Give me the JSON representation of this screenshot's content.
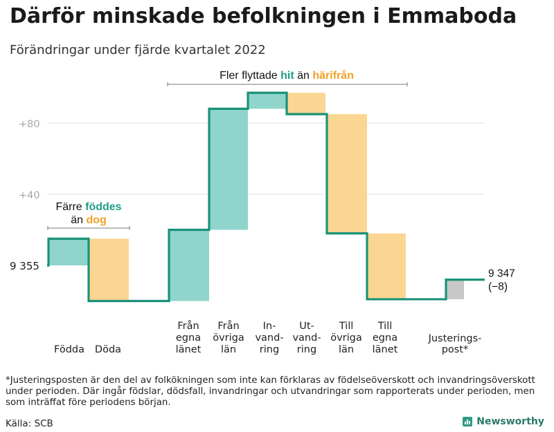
{
  "title": "Därför minskade befolkningen i Emmaboda",
  "subtitle": "Förändringar under fjärde kvartalet 2022",
  "colors": {
    "increase": "#8fd5cb",
    "decrease": "#fbd692",
    "adjustment": "#c8c8c8",
    "line": "#1a9278",
    "teal_text": "#1f9e86",
    "orange_text": "#f0a226",
    "grid": "#dedede",
    "tick": "#a6a6a6"
  },
  "chart_data": {
    "type": "waterfall",
    "title": "Därför minskade befolkningen i Emmaboda",
    "subtitle": "Förändringar under fjärde kvartalet 2022",
    "start": {
      "value": 9355,
      "label": "9 355"
    },
    "end": {
      "value": 9347,
      "label": "9 347",
      "change_label": "(−8)"
    },
    "y_axis": {
      "range": [
        -21,
        100
      ],
      "ticks": [
        {
          "value": 40,
          "label": "+40"
        },
        {
          "value": 80,
          "label": "+80"
        }
      ]
    },
    "steps": [
      {
        "name": "Födda",
        "label_lines": [
          "Födda"
        ],
        "from": 0,
        "to": 15,
        "kind": "increase"
      },
      {
        "name": "Döda",
        "label_lines": [
          "Döda"
        ],
        "from": 15,
        "to": -20,
        "kind": "decrease"
      },
      {
        "name": "Från egna länet",
        "label_lines": [
          "Från",
          "egna",
          "länet"
        ],
        "from": -20,
        "to": 20,
        "kind": "increase"
      },
      {
        "name": "Från övriga län",
        "label_lines": [
          "Från",
          "övriga",
          "län"
        ],
        "from": 20,
        "to": 88,
        "kind": "increase"
      },
      {
        "name": "Invandring",
        "label_lines": [
          "In-",
          "vand-",
          "ring"
        ],
        "from": 88,
        "to": 97,
        "kind": "increase"
      },
      {
        "name": "Utvandring",
        "label_lines": [
          "Ut-",
          "vand-",
          "ring"
        ],
        "from": 97,
        "to": 85,
        "kind": "decrease"
      },
      {
        "name": "Till övriga län",
        "label_lines": [
          "Till",
          "övriga",
          "län"
        ],
        "from": 85,
        "to": 18,
        "kind": "decrease"
      },
      {
        "name": "Till egna länet",
        "label_lines": [
          "Till",
          "egna",
          "länet"
        ],
        "from": 18,
        "to": -19,
        "kind": "decrease"
      },
      {
        "name": "Justeringspost*",
        "label_lines": [
          "Justerings-",
          "post*"
        ],
        "from": -19,
        "to": -8,
        "kind": "adjustment"
      }
    ],
    "annotations": [
      {
        "id": "births",
        "parts": [
          {
            "line": 1,
            "text": "Färre ",
            "tone": "plain"
          },
          {
            "line": 1,
            "text": "föddes",
            "tone": "increase"
          },
          {
            "line": 2,
            "text": "än ",
            "tone": "plain"
          },
          {
            "line": 2,
            "text": "dog",
            "tone": "decrease"
          }
        ]
      },
      {
        "id": "migration",
        "parts": [
          {
            "line": 1,
            "text": "Fler flyttade ",
            "tone": "plain"
          },
          {
            "line": 1,
            "text": "hit",
            "tone": "increase"
          },
          {
            "line": 1,
            "text": " än ",
            "tone": "plain"
          },
          {
            "line": 1,
            "text": "härifrån",
            "tone": "decrease"
          }
        ]
      }
    ]
  },
  "footnote": "*Justeringsposten är den del av folkökningen som inte kan förklaras av födelseöverskott och invandringsöverskott under perioden. Där ingår födslar, dödsfall, invandringar och utvandringar som rapporterats under perioden, men som inträffat före periodens början.",
  "source": "Källa: SCB",
  "brand": {
    "name": "Newsworthy",
    "icon": "bar-chart-icon"
  }
}
